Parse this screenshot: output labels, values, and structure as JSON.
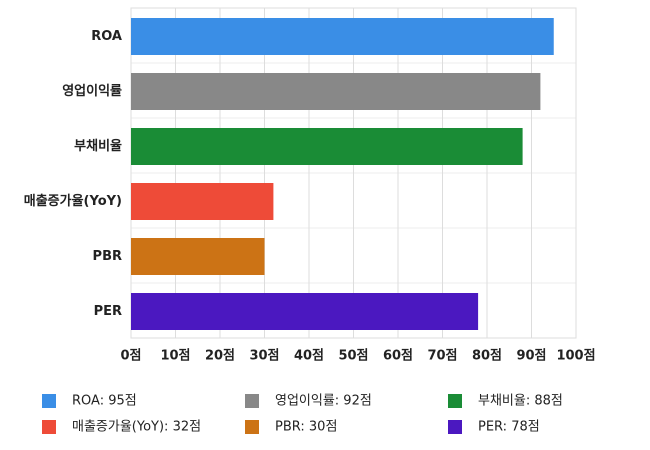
{
  "chart_data": {
    "type": "bar",
    "orientation": "horizontal",
    "categories": [
      "ROA",
      "영업이익률",
      "부채비율",
      "매출증가율(YoY)",
      "PBR",
      "PER"
    ],
    "values": [
      95,
      92,
      88,
      32,
      30,
      78
    ],
    "colors": [
      "#3a8ee6",
      "#888888",
      "#1a8c36",
      "#ee4b38",
      "#cc7315",
      "#4b18c0"
    ],
    "legend_labels": [
      "ROA: 95점",
      "영업이익률: 92점",
      "부채비율: 88점",
      "매출증가율(YoY): 32점",
      "PBR: 30점",
      "PER: 78점"
    ],
    "xlim": [
      0,
      100
    ],
    "xticks": [
      {
        "value": 0,
        "label": "0점"
      },
      {
        "value": 10,
        "label": "10점"
      },
      {
        "value": 20,
        "label": "20점"
      },
      {
        "value": 30,
        "label": "30점"
      },
      {
        "value": 40,
        "label": "40점"
      },
      {
        "value": 50,
        "label": "50점"
      },
      {
        "value": 60,
        "label": "60점"
      },
      {
        "value": 70,
        "label": "70점"
      },
      {
        "value": 80,
        "label": "80점"
      },
      {
        "value": 90,
        "label": "90점"
      },
      {
        "value": 100,
        "label": "100점"
      }
    ],
    "grid": true
  }
}
